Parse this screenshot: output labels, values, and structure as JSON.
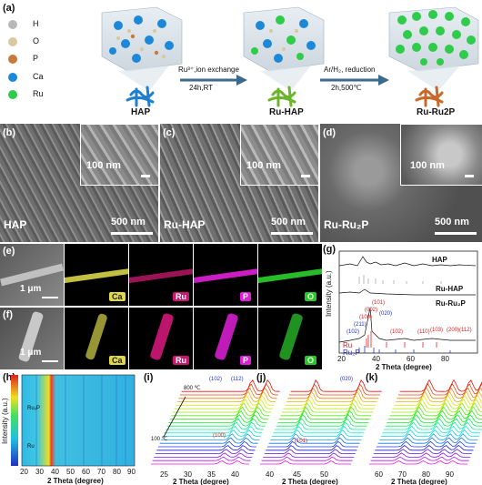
{
  "panel_labels": {
    "a": "(a)",
    "b": "(b)",
    "c": "(c)",
    "d": "(d)",
    "e": "(e)",
    "f": "(f)",
    "g": "(g)",
    "h": "(h)",
    "i": "(i)",
    "j": "(j)",
    "k": "(k)"
  },
  "legend": [
    {
      "label": "H",
      "color": "#b8b8b8"
    },
    {
      "label": "O",
      "color": "#d9c8a0"
    },
    {
      "label": "P",
      "color": "#c87a3a"
    },
    {
      "label": "Ca",
      "color": "#1e88d8"
    },
    {
      "label": "Ru",
      "color": "#2ecc4a"
    }
  ],
  "schematic": {
    "stages": [
      "HAP",
      "Ru-HAP",
      "Ru-Ru2P"
    ],
    "step1_top": "Ru³⁺,ion exchange",
    "step1_bottom": "24h,RT",
    "step2_top": "Ar/H₂, reduction",
    "step2_bottom": "2h,500℃"
  },
  "sem": {
    "scale_main": "500 nm",
    "scale_inset": "100 nm",
    "names": [
      "HAP",
      "Ru-HAP",
      "Ru-Ru₂P"
    ]
  },
  "eds": {
    "scale": "1 μm",
    "elements": [
      "Ca",
      "Ru",
      "P",
      "O"
    ]
  },
  "xrd_g": {
    "labels": [
      "HAP",
      "Ru-HAP",
      "Ru-Ru₂P",
      "Ru",
      "Ru₂P"
    ],
    "xlabel": "2 Theta (degree)",
    "ylabel": "Intensity (a.u.)",
    "xticks": [
      "20",
      "40",
      "60",
      "80"
    ],
    "peaks": [
      "(102)",
      "(100)",
      "(002)",
      "(101)",
      "(211)",
      "(020)",
      "(102)",
      "(110)",
      "(103)",
      "(200)",
      "(112)"
    ]
  },
  "insitu": {
    "h_ylabel": "Intensity (a.u.)",
    "h_xlabel": "2 Theta (degree)",
    "h_xticks": [
      "20",
      "30",
      "40",
      "50",
      "60",
      "70",
      "80",
      "90"
    ],
    "h_annot": [
      "Ru₂P",
      "Ru"
    ],
    "temp_top": "800 ℃",
    "temp_bottom": "100 ℃",
    "i_xticks": [
      "25",
      "30",
      "35",
      "40"
    ],
    "j_xticks": [
      "40",
      "45",
      "50"
    ],
    "k_xticks": [
      "60",
      "70",
      "80",
      "90"
    ],
    "i_peaks": [
      "(102)",
      "(112)"
    ],
    "i_red": "(100)",
    "j_peak": "(020)",
    "j_red": "(101)",
    "xlabel": "2 Theta (degree)"
  }
}
